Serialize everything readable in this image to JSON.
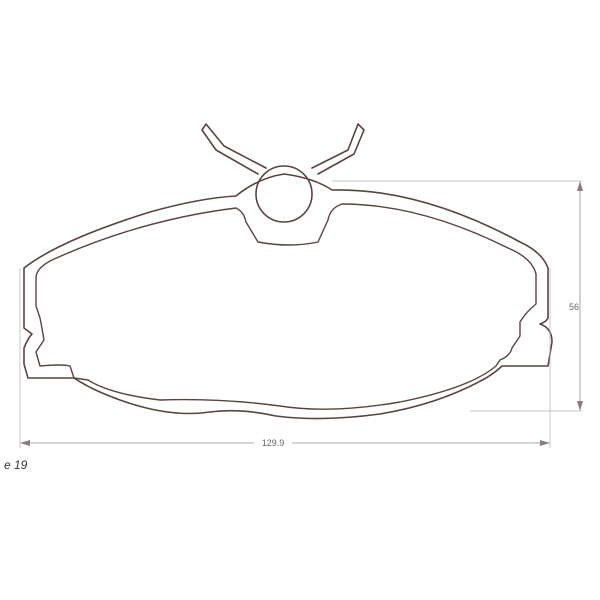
{
  "drawing": {
    "dimensions": {
      "width_label": "129.9",
      "height_label": "56"
    },
    "reference_code": "e 19"
  }
}
